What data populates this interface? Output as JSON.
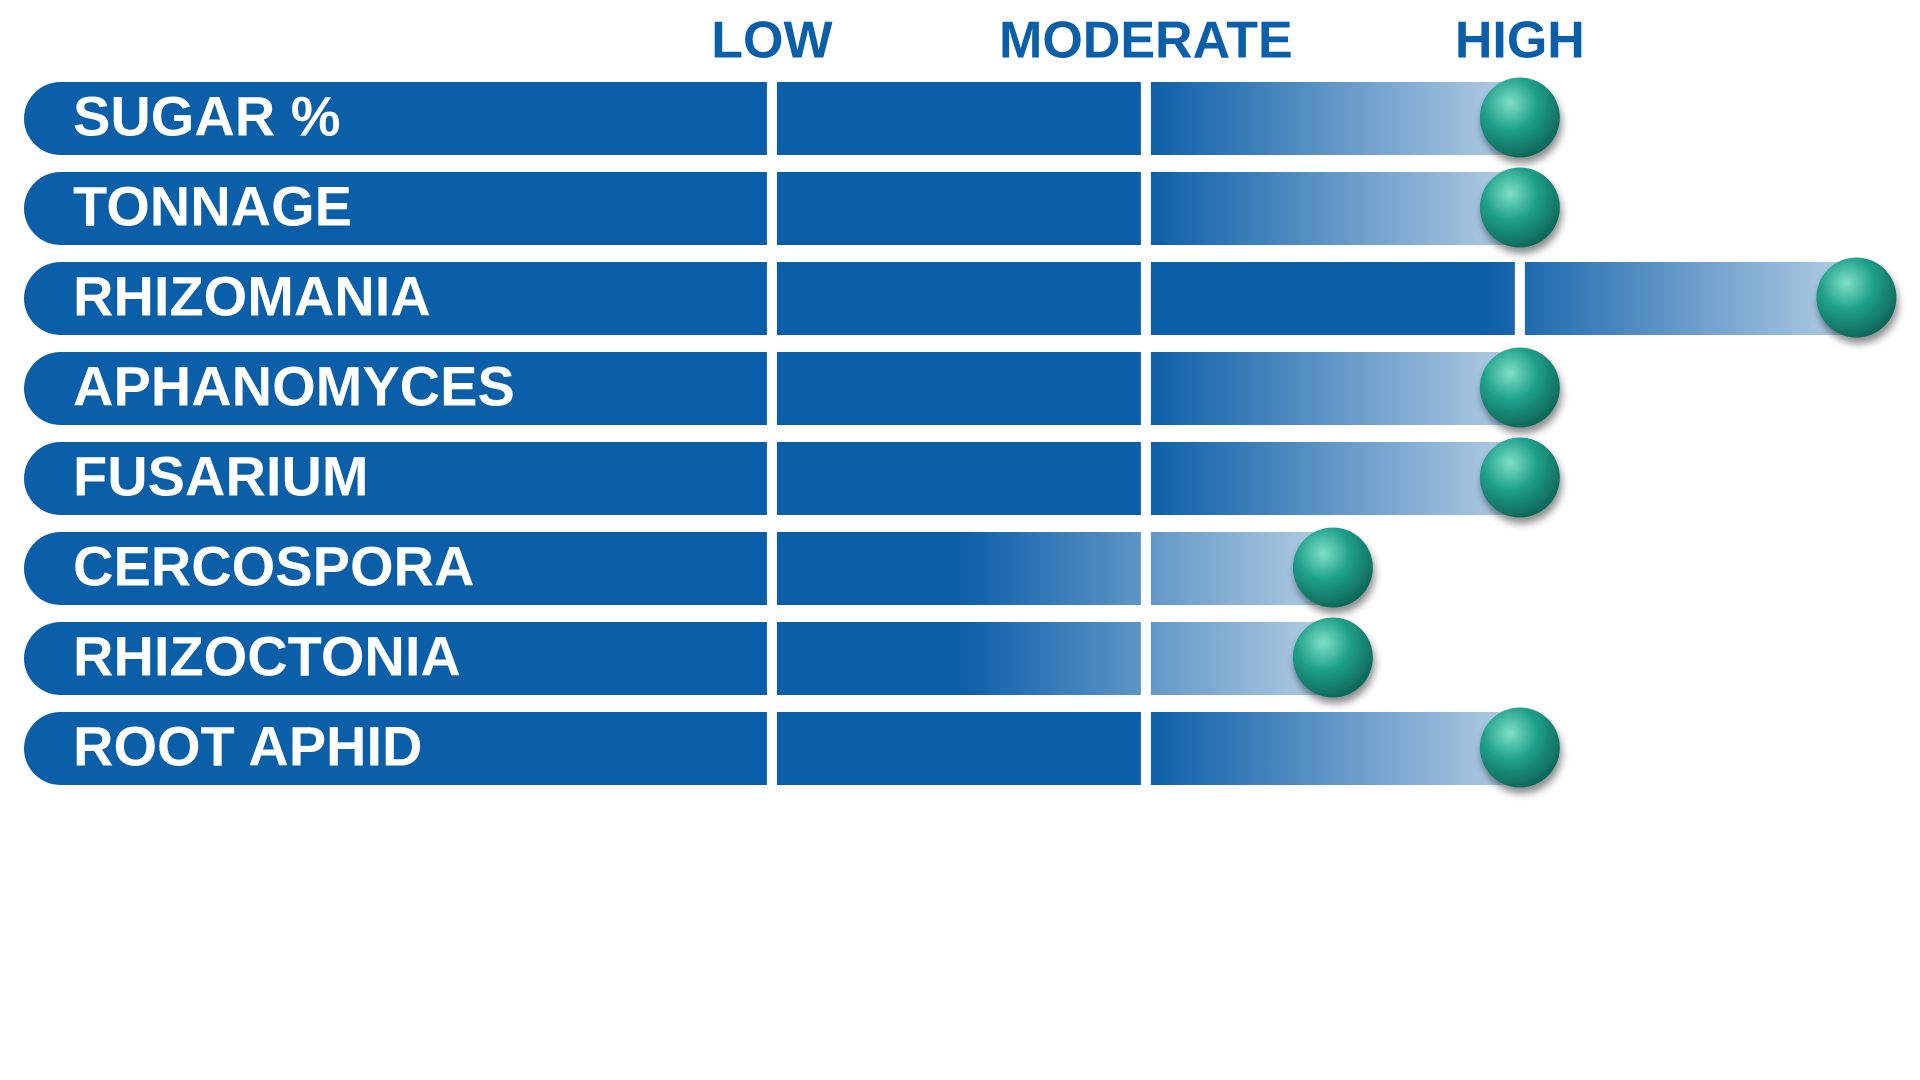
{
  "chart_data": {
    "type": "bar",
    "categories": [
      "SUGAR %",
      "TONNAGE",
      "RHIZOMANIA",
      "APHANOMYCES",
      "FUSARIUM",
      "CERCOSPORA",
      "RHIZOCTONIA",
      "ROOT APHID"
    ],
    "values": [
      3,
      3,
      3.9,
      3,
      3,
      2.5,
      2.5,
      3
    ],
    "color": "#0b5ea8",
    "marker_color": "#1fa08a",
    "xlim": [
      -1,
      4.07
    ],
    "xticks": [
      {
        "value": 1,
        "label": "LOW"
      },
      {
        "value": 2,
        "label": "MODERATE"
      },
      {
        "value": 3,
        "label": "HIGH"
      }
    ]
  }
}
